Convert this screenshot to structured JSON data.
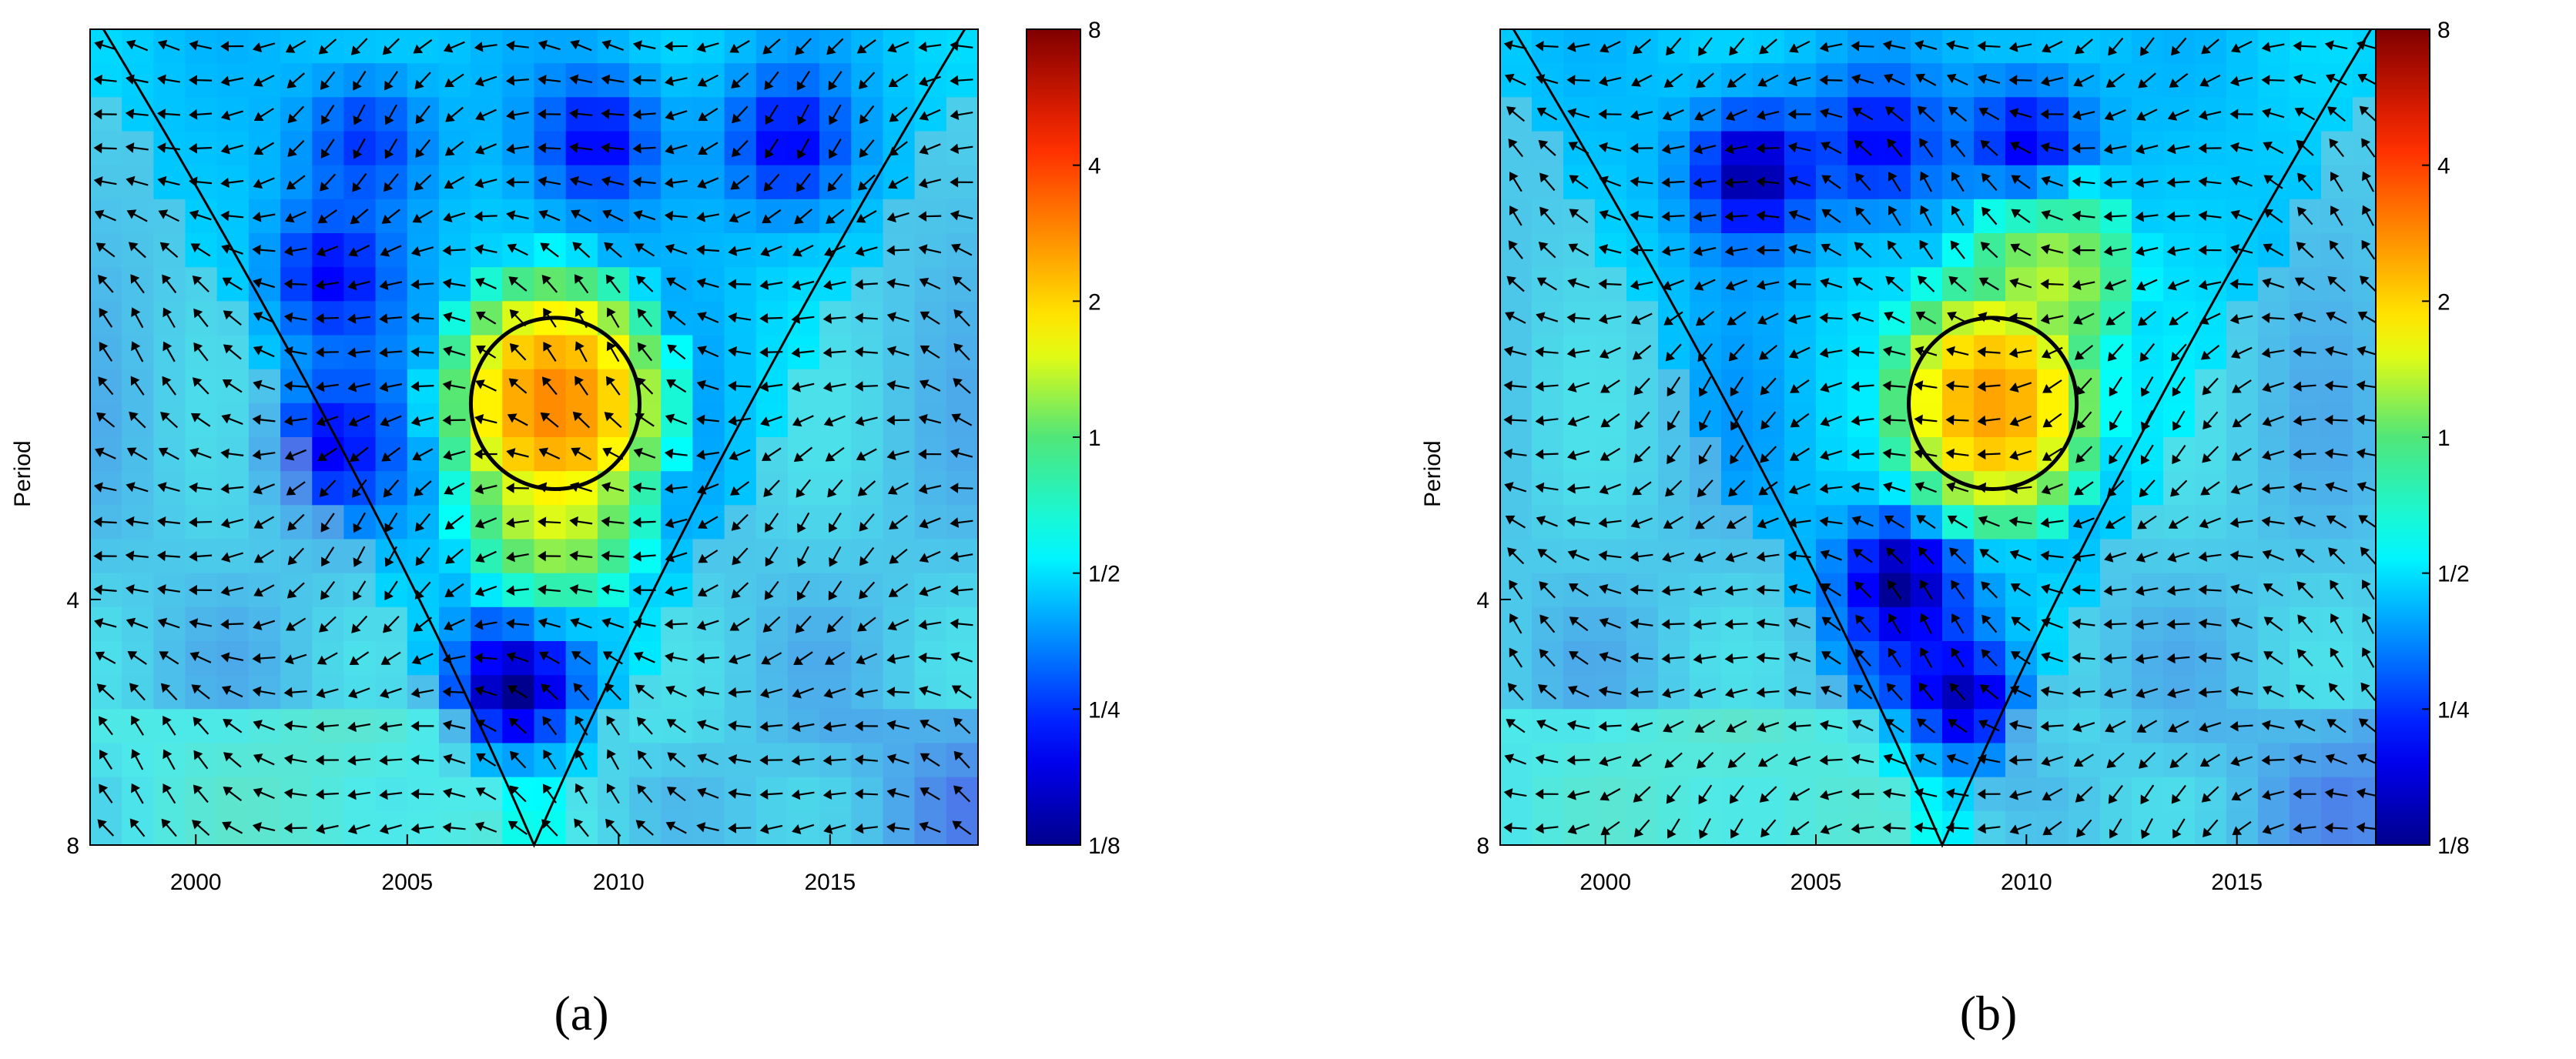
{
  "chart_data": [
    {
      "type": "heatmap",
      "subtitle": "(a)",
      "xlabel": "",
      "ylabel": "Period",
      "xlim": [
        1997.5,
        2018.5
      ],
      "x_ticks": [
        "2000",
        "2005",
        "2010",
        "2015"
      ],
      "x_tick_values": [
        2000,
        2005,
        2010,
        2015
      ],
      "y_ticks": [
        "4",
        "8"
      ],
      "y_tick_values": [
        4,
        8
      ],
      "colorbar_ticks": [
        "8",
        "4",
        "2",
        "1",
        "1/2",
        "1/4",
        "1/8"
      ],
      "colorbar_values": [
        8,
        4,
        2,
        1,
        0.5,
        0.25,
        0.125
      ],
      "cone_of_influence_apex_x": 2008,
      "grid": false,
      "legend": "colorbar-right",
      "significance_region_center": [
        2008.5,
        2.3
      ],
      "hot_regions": [
        {
          "x": 2008.5,
          "period": 2.3,
          "power": 2.5
        },
        {
          "x": 2008.5,
          "period": 3.0,
          "power": 1.2
        }
      ],
      "cold_regions": [
        {
          "x": 2007.5,
          "period": 5.2,
          "power": 0.125
        },
        {
          "x": 2003.2,
          "period": 1.6,
          "power": 0.2
        },
        {
          "x": 2003.2,
          "period": 2.6,
          "power": 0.2
        },
        {
          "x": 2009.5,
          "period": 1.1,
          "power": 0.2
        },
        {
          "x": 2014.0,
          "period": 1.1,
          "power": 0.2
        },
        {
          "x": 2004.0,
          "period": 1.1,
          "power": 0.25
        }
      ]
    },
    {
      "type": "heatmap",
      "subtitle": "(b)",
      "xlabel": "",
      "ylabel": "Period",
      "xlim": [
        1997.5,
        2018.5
      ],
      "x_ticks": [
        "2000",
        "2005",
        "2010",
        "2015"
      ],
      "x_tick_values": [
        2000,
        2005,
        2010,
        2015
      ],
      "y_ticks": [
        "4",
        "8"
      ],
      "y_tick_values": [
        4,
        8
      ],
      "colorbar_ticks": [
        "8",
        "4",
        "2",
        "1",
        "1/2",
        "1/4",
        "1/8"
      ],
      "colorbar_values": [
        8,
        4,
        2,
        1,
        0.5,
        0.25,
        0.125
      ],
      "cone_of_influence_apex_x": 2008,
      "grid": false,
      "legend": "colorbar-right",
      "significance_region_center": [
        2009.2,
        2.3
      ],
      "hot_regions": [
        {
          "x": 2009.2,
          "period": 2.3,
          "power": 2.2
        },
        {
          "x": 2010.5,
          "period": 1.6,
          "power": 1.0
        }
      ],
      "cold_regions": [
        {
          "x": 2003.5,
          "period": 1.2,
          "power": 0.125
        },
        {
          "x": 2008.5,
          "period": 5.3,
          "power": 0.15
        },
        {
          "x": 2007.0,
          "period": 3.8,
          "power": 0.125
        },
        {
          "x": 2006.5,
          "period": 1.1,
          "power": 0.2
        },
        {
          "x": 2010.0,
          "period": 1.1,
          "power": 0.2
        }
      ]
    }
  ]
}
